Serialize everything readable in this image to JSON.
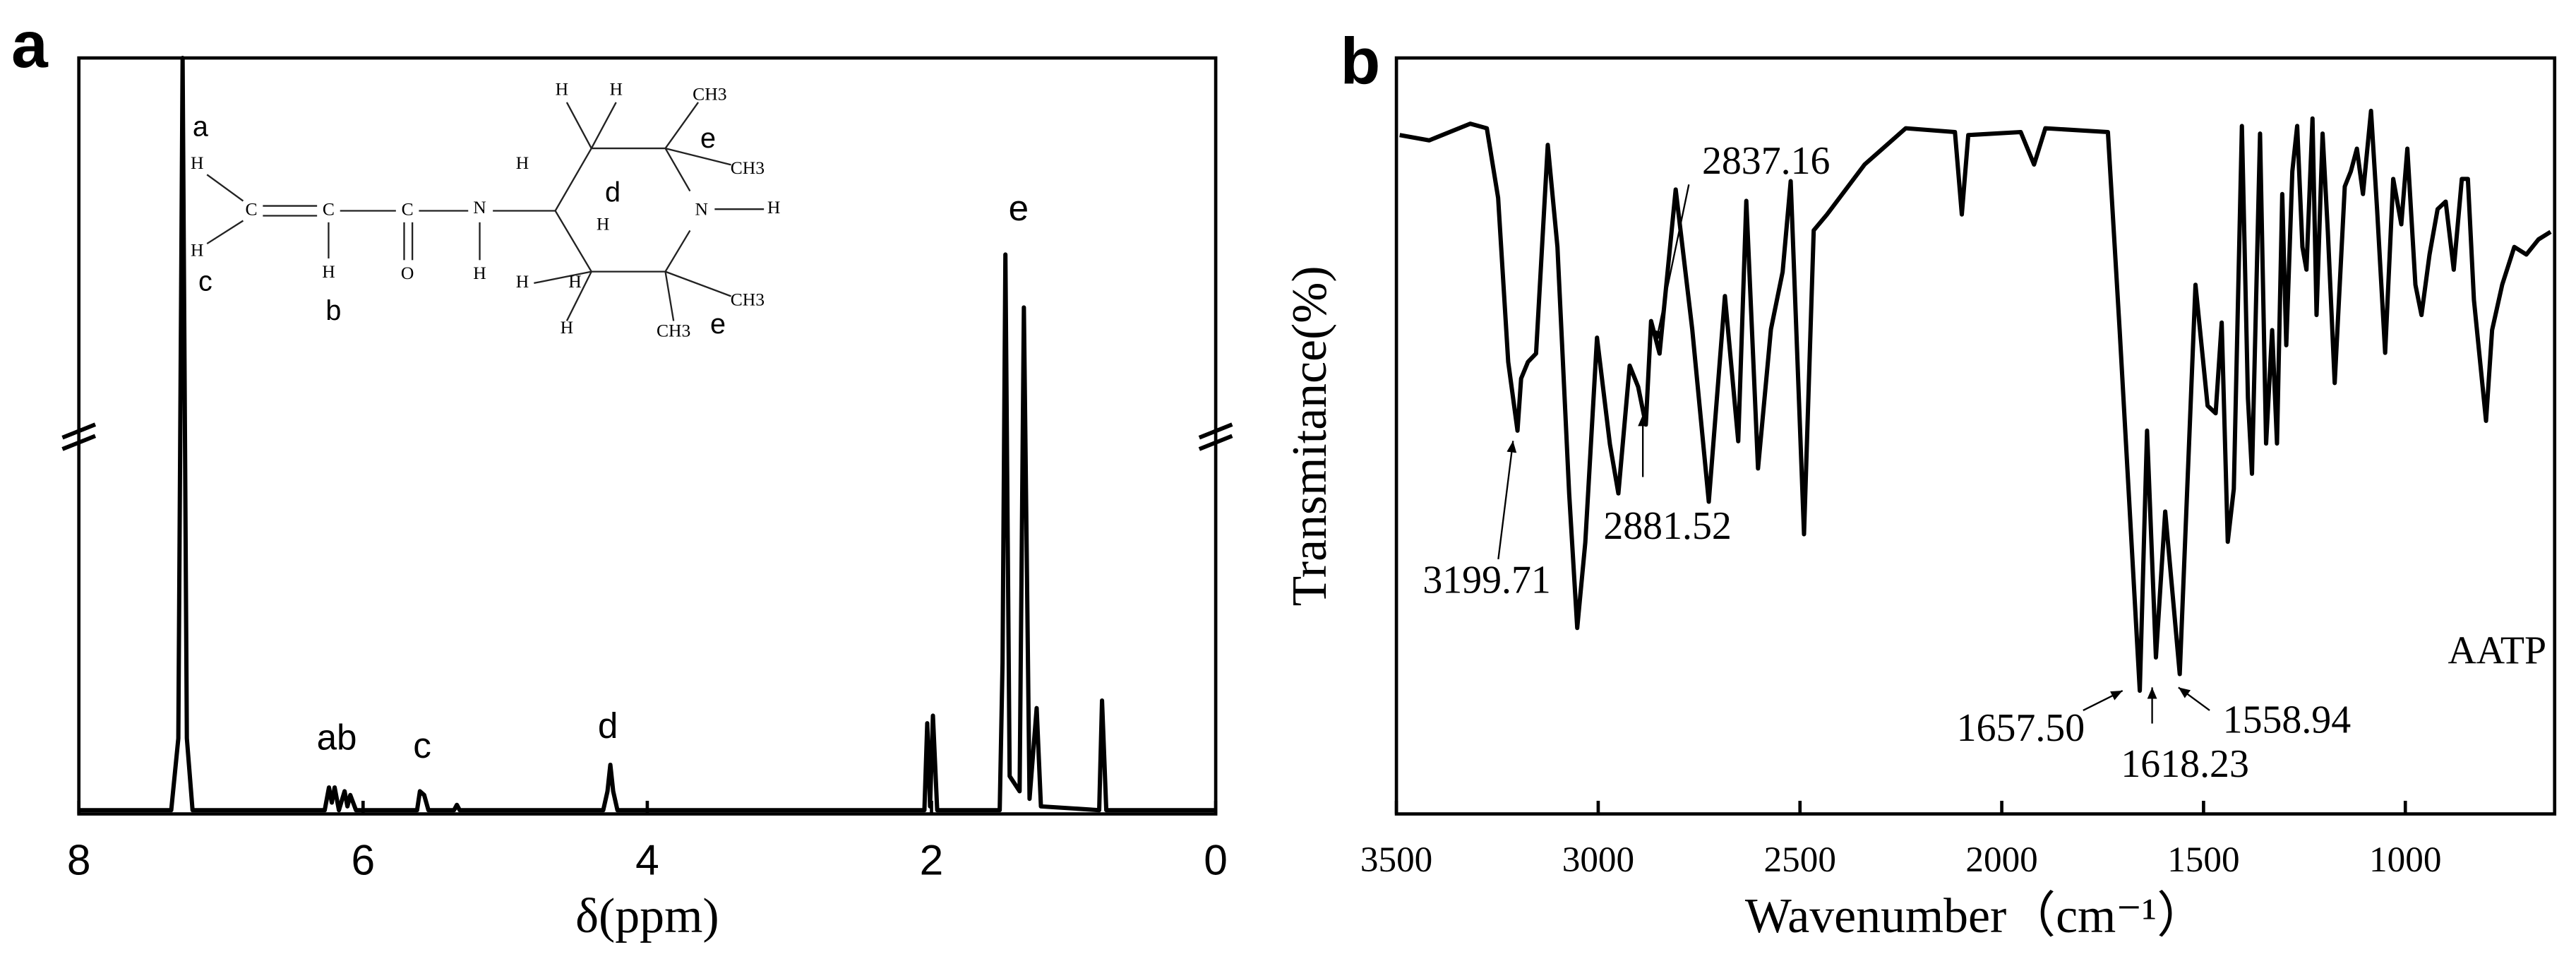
{
  "chart_data": [
    {
      "type": "line",
      "panel": "a",
      "xlabel": "δ(ppm)",
      "xlim": [
        8,
        0
      ],
      "xticks": [
        8,
        6,
        4,
        2,
        0
      ],
      "ylim": [
        0,
        100
      ],
      "color": "#000000",
      "x": [
        8.0,
        7.35,
        7.3,
        7.27,
        7.24,
        7.2,
        6.27,
        6.24,
        6.22,
        6.2,
        6.17,
        6.13,
        6.11,
        6.09,
        6.05,
        5.62,
        5.6,
        5.57,
        5.54,
        5.36,
        5.34,
        5.32,
        4.31,
        4.28,
        4.26,
        4.24,
        4.21,
        2.05,
        2.03,
        2.01,
        1.99,
        1.96,
        1.52,
        1.5,
        1.48,
        1.45,
        1.38,
        1.35,
        1.31,
        1.26,
        1.23,
        0.82,
        0.8,
        0.77,
        0.0
      ],
      "series": [
        {
          "values": [
            0.5,
            0.5,
            10,
            100,
            10,
            0.5,
            0.5,
            3.5,
            1.5,
            3.5,
            0.5,
            3,
            1,
            2.5,
            0.5,
            0.5,
            3,
            2.5,
            0.5,
            0.5,
            1.2,
            0.5,
            0.5,
            3,
            6.5,
            3,
            0.5,
            0.5,
            12,
            1,
            13,
            0.5,
            0.5,
            20,
            74,
            5,
            3,
            67,
            2,
            14,
            1,
            0.5,
            15,
            0.5,
            0.5
          ]
        }
      ],
      "annotations": [
        "ab",
        "c",
        "d",
        "e"
      ],
      "structure": [
        "a",
        "H",
        "C",
        "C",
        "C",
        "N",
        "H",
        "O",
        "H",
        "c",
        "H",
        "b",
        "H",
        "H",
        "H",
        "d",
        "H",
        "N",
        "H",
        "H",
        "H",
        "H",
        "CH3",
        "e",
        "CH3",
        "CH3",
        "CH3",
        "e"
      ]
    },
    {
      "type": "line",
      "panel": "b",
      "xlabel": "Wavenumber（cm⁻¹）",
      "ylabel": "Transmitance(%)",
      "xlim": [
        3500,
        630
      ],
      "xticks": [
        3500,
        3000,
        2500,
        2000,
        1500,
        1000
      ],
      "ylim": [
        0,
        100
      ],
      "x": [
        3492,
        3419,
        3317,
        3276,
        3248,
        3223,
        3200,
        3191,
        3174,
        3154,
        3125,
        3101,
        3072,
        3052,
        3032,
        3003,
        2971,
        2950,
        2922,
        2901,
        2882,
        2869,
        2848,
        2808,
        2767,
        2726,
        2686,
        2653,
        2633,
        2604,
        2572,
        2543,
        2523,
        2490,
        2466,
        2433,
        2340,
        2238,
        2116,
        2099,
        2083,
        1953,
        1920,
        1892,
        1737,
        1708,
        1658,
        1640,
        1618,
        1595,
        1559,
        1520,
        1490,
        1470,
        1455,
        1440,
        1425,
        1405,
        1390,
        1380,
        1360,
        1345,
        1330,
        1318,
        1305,
        1295,
        1280,
        1268,
        1255,
        1245,
        1230,
        1220,
        1205,
        1192,
        1175,
        1150,
        1135,
        1120,
        1105,
        1085,
        1070,
        1050,
        1030,
        1010,
        995,
        975,
        960,
        940,
        920,
        900,
        880,
        860,
        845,
        830,
        800,
        785,
        760,
        730,
        700,
        670,
        640
      ],
      "series": [
        {
          "name": "AATP",
          "color": "#000000",
          "values": [
            89.8,
            89.1,
            91.3,
            90.7,
            81.5,
            59.8,
            50.7,
            57.6,
            59.8,
            60.9,
            88.5,
            75.0,
            42.4,
            24.6,
            35.9,
            63.0,
            48.9,
            42.4,
            59.3,
            56.5,
            51.5,
            65.2,
            60.9,
            82.6,
            64.1,
            41.3,
            68.5,
            49.3,
            81.1,
            45.7,
            64.1,
            71.7,
            83.7,
            37.0,
            77.2,
            79.3,
            85.9,
            90.7,
            90.2,
            79.3,
            89.8,
            90.2,
            85.9,
            90.7,
            90.2,
            64.1,
            16.3,
            50.7,
            20.7,
            40,
            18.5,
            70,
            54,
            53,
            65,
            36,
            43,
            91,
            55,
            45,
            90,
            49,
            64,
            49,
            82,
            62,
            85,
            91,
            75,
            72,
            92,
            66,
            90,
            77,
            57,
            83,
            85,
            88,
            82,
            93,
            80,
            61,
            84,
            78,
            88,
            70,
            66,
            74,
            80,
            81,
            72,
            84,
            84,
            68,
            52,
            64,
            70,
            75,
            74,
            76,
            77
          ]
        }
      ],
      "annotations": [
        "2837.16",
        "3199.71",
        "2881.52",
        "1657.50",
        "1618.23",
        "1558.94"
      ]
    }
  ]
}
